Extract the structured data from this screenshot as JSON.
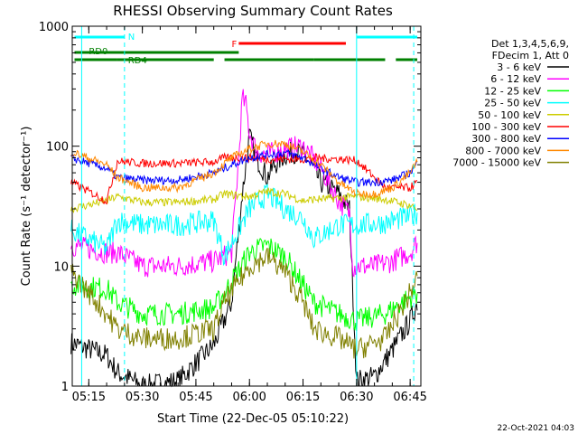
{
  "chart_data": {
    "type": "line",
    "title": "RHESSI Observing Summary Count Rates",
    "xlabel": "Start Time (22-Dec-05 05:10:22)",
    "ylabel": "Count Rate (s⁻¹ detector⁻¹)",
    "yscale": "log",
    "ylim": [
      1,
      1000
    ],
    "xlim": [
      "05:10:22",
      "06:48:00"
    ],
    "x_ticks": [
      "05:15",
      "05:30",
      "05:45",
      "06:00",
      "06:15",
      "06:30",
      "06:45"
    ],
    "y_ticks": [
      "1",
      "10",
      "100",
      "1000"
    ],
    "legend": {
      "header": [
        "Det 1,3,4,5,6,9,",
        "FDecim 1, Att 0"
      ],
      "placement": "right"
    },
    "series": [
      {
        "name": "3 - 6 keV",
        "color": "#000000",
        "x": [
          "05:10",
          "05:20",
          "05:23",
          "05:30",
          "05:40",
          "05:50",
          "05:55",
          "05:58",
          "06:00",
          "06:02",
          "06:05",
          "06:07",
          "06:10",
          "06:13",
          "06:16",
          "06:20",
          "06:25",
          "06:28",
          "06:30",
          "06:35",
          "06:40",
          "06:45",
          "06:47"
        ],
        "values": [
          2.3,
          1.8,
          1.3,
          1.0,
          1.1,
          2.2,
          5.0,
          40,
          120,
          80,
          55,
          70,
          85,
          90,
          80,
          50,
          40,
          30,
          1.1,
          1.2,
          2.0,
          3.5,
          5.0
        ]
      },
      {
        "name": "6 - 12 keV",
        "color": "#ff00ff",
        "x": [
          "05:10",
          "05:20",
          "05:23",
          "05:30",
          "05:40",
          "05:50",
          "05:55",
          "05:57",
          "05:58",
          "05:59",
          "06:00",
          "06:02",
          "06:05",
          "06:10",
          "06:15",
          "06:20",
          "06:25",
          "06:28",
          "06:29",
          "06:35",
          "06:40",
          "06:45",
          "06:47"
        ],
        "values": [
          15,
          13,
          13,
          10,
          10,
          11,
          13,
          80,
          250,
          220,
          130,
          90,
          85,
          95,
          100,
          65,
          35,
          28,
          10,
          10,
          11,
          13,
          16
        ]
      },
      {
        "name": "12 - 25 keV",
        "color": "#00ff00",
        "x": [
          "05:10",
          "05:20",
          "05:23",
          "05:30",
          "05:40",
          "05:50",
          "05:53",
          "06:00",
          "06:05",
          "06:10",
          "06:15",
          "06:18",
          "06:25",
          "06:30",
          "06:38",
          "06:45",
          "06:47"
        ],
        "values": [
          7,
          6.5,
          5,
          4,
          4,
          4.5,
          6,
          13,
          15,
          12,
          7,
          5,
          4,
          3.5,
          4,
          5.5,
          6
        ]
      },
      {
        "name": "25 - 50 keV",
        "color": "#00ffff",
        "x": [
          "05:10",
          "05:20",
          "05:23",
          "05:30",
          "05:40",
          "05:50",
          "05:53",
          "06:00",
          "06:05",
          "06:10",
          "06:15",
          "06:18",
          "06:25",
          "06:30",
          "06:38",
          "06:45",
          "06:47"
        ],
        "values": [
          20,
          14,
          24,
          22,
          22,
          24,
          12,
          30,
          40,
          30,
          25,
          17,
          22,
          22,
          23,
          26,
          28
        ]
      },
      {
        "name": "50 - 100 keV",
        "color": "#cccc00",
        "x": [
          "05:10",
          "05:20",
          "05:23",
          "05:30",
          "05:40",
          "05:50",
          "05:53",
          "06:00",
          "06:05",
          "06:10",
          "06:15",
          "06:18",
          "06:25",
          "06:30",
          "06:38",
          "06:45",
          "06:47"
        ],
        "values": [
          30,
          35,
          38,
          34,
          34,
          36,
          40,
          38,
          42,
          40,
          35,
          36,
          37,
          38,
          36,
          32,
          30
        ]
      },
      {
        "name": "100 - 300 keV",
        "color": "#ff0000",
        "x": [
          "05:10",
          "05:20",
          "05:23",
          "05:30",
          "05:40",
          "05:50",
          "05:53",
          "06:00",
          "06:05",
          "06:10",
          "06:15",
          "06:18",
          "06:25",
          "06:30",
          "06:38",
          "06:45",
          "06:47"
        ],
        "values": [
          50,
          35,
          75,
          72,
          72,
          74,
          80,
          80,
          78,
          78,
          78,
          80,
          78,
          76,
          45,
          45,
          50
        ]
      },
      {
        "name": "300 - 800 keV",
        "color": "#0000ff",
        "x": [
          "05:10",
          "05:20",
          "05:23",
          "05:30",
          "05:40",
          "05:50",
          "05:55",
          "06:00",
          "06:05",
          "06:10",
          "06:15",
          "06:20",
          "06:25",
          "06:30",
          "06:35",
          "06:40",
          "06:45",
          "06:47"
        ],
        "values": [
          80,
          65,
          55,
          52,
          52,
          60,
          70,
          80,
          85,
          88,
          80,
          65,
          55,
          50,
          50,
          52,
          60,
          72
        ]
      },
      {
        "name": "800 - 7000 keV",
        "color": "#ff8800",
        "x": [
          "05:10",
          "05:20",
          "05:23",
          "05:30",
          "05:40",
          "05:50",
          "05:55",
          "06:00",
          "06:05",
          "06:10",
          "06:15",
          "06:20",
          "06:25",
          "06:30",
          "06:35",
          "06:40",
          "06:45",
          "06:47"
        ],
        "values": [
          90,
          70,
          55,
          45,
          45,
          60,
          80,
          95,
          105,
          105,
          90,
          70,
          50,
          40,
          40,
          45,
          60,
          75
        ]
      },
      {
        "name": "7000 - 15000 keV",
        "color": "#808000",
        "x": [
          "05:10",
          "05:20",
          "05:23",
          "05:30",
          "05:40",
          "05:50",
          "05:53",
          "06:00",
          "06:05",
          "06:10",
          "06:15",
          "06:18",
          "06:25",
          "06:30",
          "06:38",
          "06:45",
          "06:47"
        ],
        "values": [
          9,
          4,
          3,
          2.5,
          2.5,
          3,
          5,
          10,
          12,
          9,
          5,
          3,
          2.5,
          2,
          2.5,
          6,
          8
        ]
      }
    ],
    "annotations": {
      "state_bars": [
        {
          "label": "N",
          "color": "#00ffff",
          "segments": [
            [
              "05:11",
              "05:25"
            ],
            [
              "06:30",
              "06:47"
            ]
          ]
        },
        {
          "label": "F",
          "color": "#ff0000",
          "segments": [
            [
              "05:57",
              "06:27"
            ]
          ]
        },
        {
          "label": "RD0",
          "color": "#008000",
          "segments": [
            [
              "05:11",
              "05:57"
            ]
          ]
        },
        {
          "label": "RD4",
          "color": "#008000",
          "segments": [
            [
              "05:11",
              "05:23"
            ],
            [
              "05:23",
              "05:50"
            ],
            [
              "05:53",
              "06:18"
            ],
            [
              "06:18",
              "06:38"
            ],
            [
              "06:41",
              "06:47"
            ]
          ]
        }
      ],
      "vlines": [
        {
          "x": "05:13",
          "color": "#00ffff",
          "style": "solid"
        },
        {
          "x": "05:25",
          "color": "#00ffff",
          "style": "dashed"
        },
        {
          "x": "06:30",
          "color": "#00ffff",
          "style": "solid"
        },
        {
          "x": "06:46",
          "color": "#00ffff",
          "style": "dashed"
        }
      ]
    },
    "footer_date": "22-Oct-2021 04:03"
  }
}
